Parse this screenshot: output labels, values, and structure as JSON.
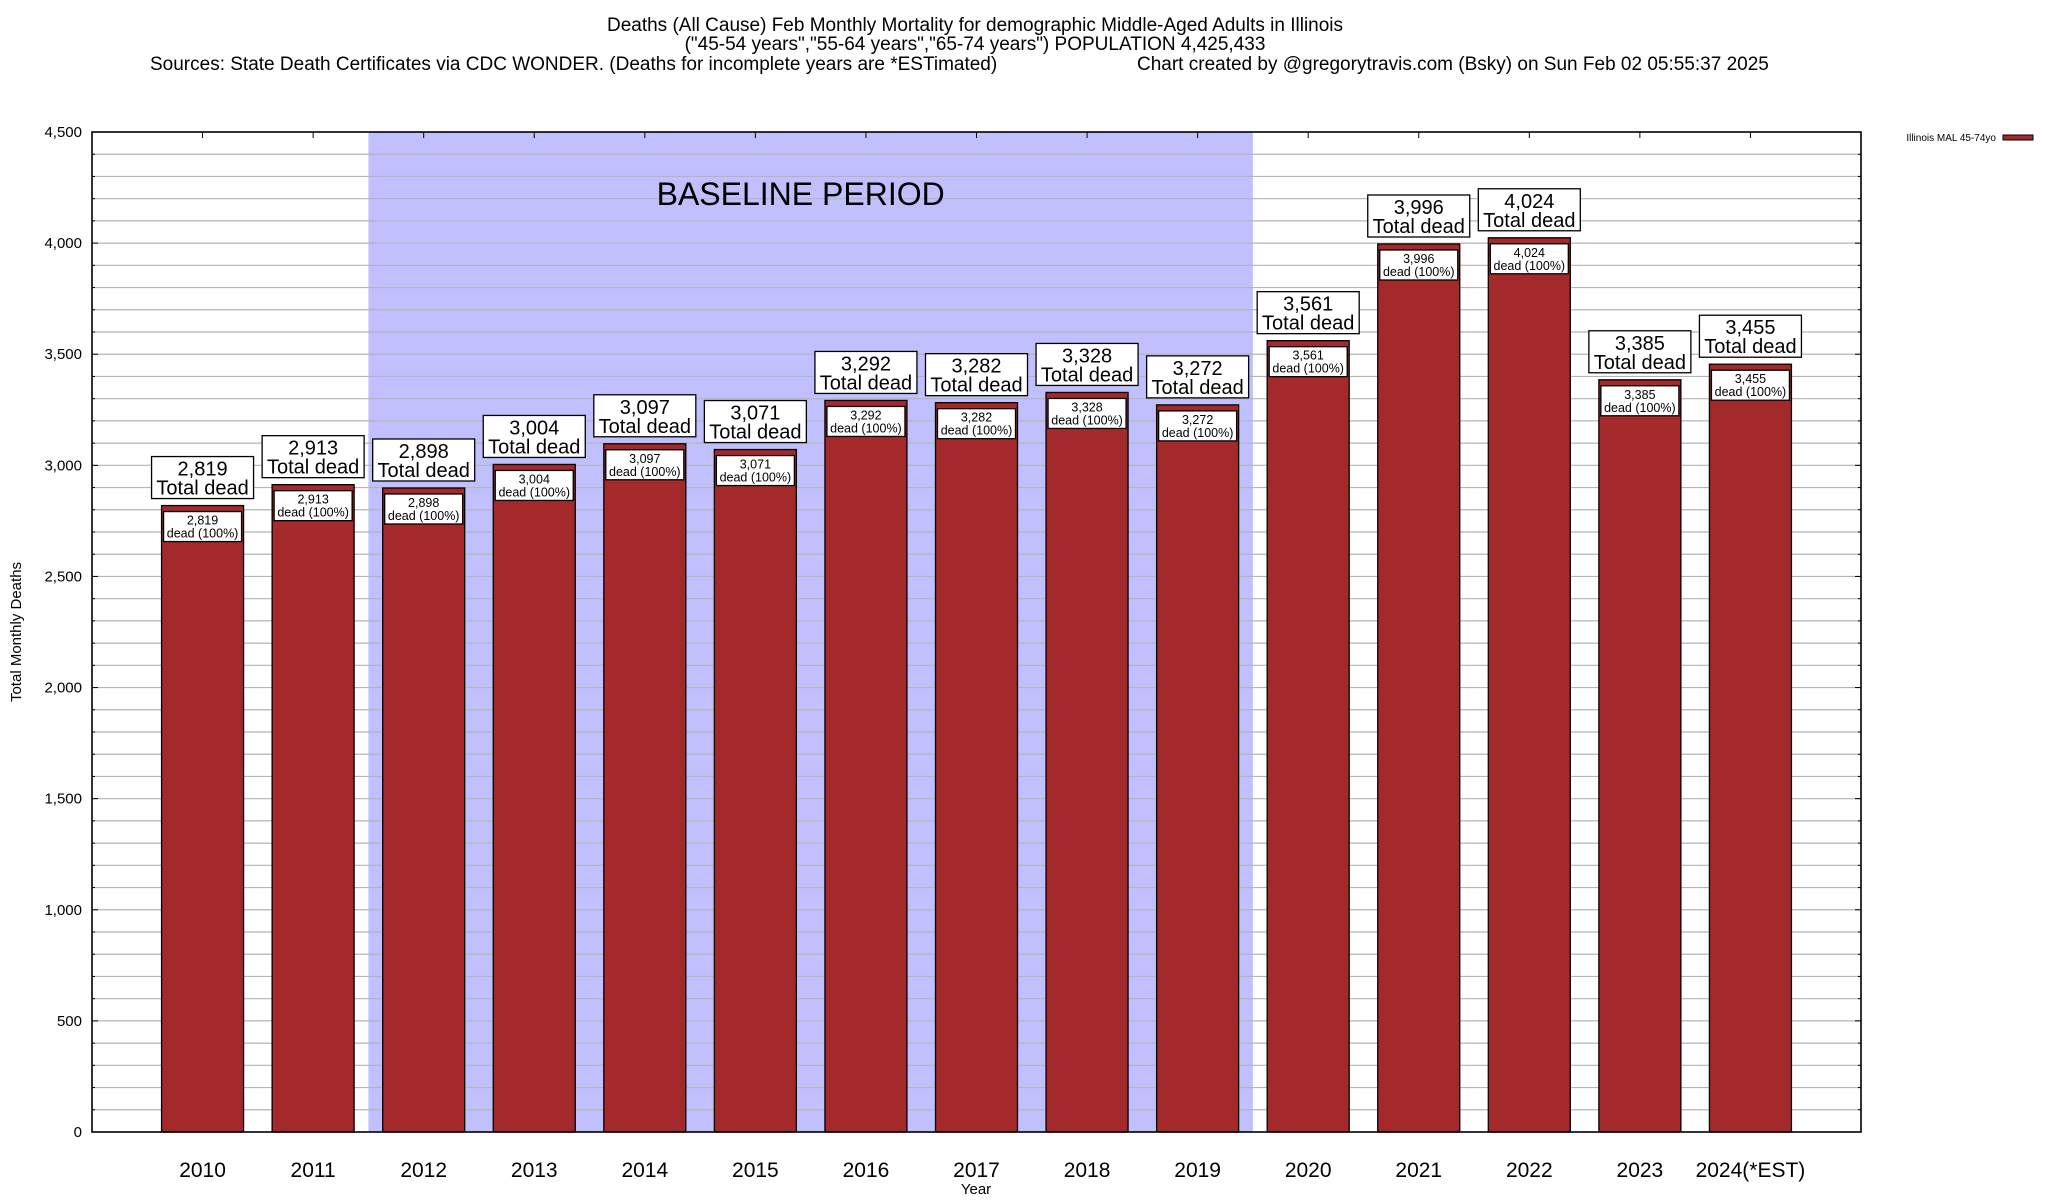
{
  "header": {
    "title_line1": "Deaths (All Cause) Feb Monthly Mortality for demographic Middle-Aged Adults in Illinois",
    "title_line2": "(\"45-54 years\",\"55-64 years\",\"65-74 years\") POPULATION 4,425,433",
    "sources": "Sources: State Death Certificates via CDC WONDER. (Deaths for incomplete years are *ESTimated)",
    "credit": "Chart created by @gregorytravis.com (Bsky) on Sun Feb 02 05:55:37 2025"
  },
  "chart_data": {
    "type": "bar",
    "title": "Deaths (All Cause) Feb Monthly Mortality for demographic Middle-Aged Adults in Illinois",
    "xlabel": "Year",
    "ylabel": "Total Monthly Deaths",
    "ylim": [
      0,
      4500
    ],
    "y_ticks": [
      0,
      500,
      1000,
      1500,
      2000,
      2500,
      3000,
      3500,
      4000,
      4500
    ],
    "y_tick_labels": [
      "0",
      "500",
      "1,000",
      "1,500",
      "2,000",
      "2,500",
      "3,000",
      "3,500",
      "4,000",
      "4,500"
    ],
    "y_minor_step": 100,
    "grid": true,
    "categories": [
      "2010",
      "2011",
      "2012",
      "2013",
      "2014",
      "2015",
      "2016",
      "2017",
      "2018",
      "2019",
      "2020",
      "2021",
      "2022",
      "2023",
      "2024(*EST)"
    ],
    "series": [
      {
        "name": "Illinois MAL 45-74yo",
        "color": "#a3292b",
        "values": [
          2819,
          2913,
          2898,
          3004,
          3097,
          3071,
          3292,
          3282,
          3328,
          3272,
          3561,
          3996,
          4024,
          3385,
          3455
        ],
        "value_labels": [
          "2,819",
          "2,913",
          "2,898",
          "3,004",
          "3,097",
          "3,071",
          "3,292",
          "3,282",
          "3,328",
          "3,272",
          "3,561",
          "3,996",
          "4,024",
          "3,385",
          "3,455"
        ]
      }
    ],
    "outer_label_suffix": "Total dead",
    "inner_label_suffix": "dead (100%)",
    "annotation": {
      "text": "BASELINE PERIOD",
      "start_category": "2012",
      "end_category": "2019",
      "color": "#c0c0ff"
    },
    "legend": {
      "placement": "top-right-outside",
      "entries": [
        "Illinois MAL 45-74yo"
      ]
    }
  }
}
